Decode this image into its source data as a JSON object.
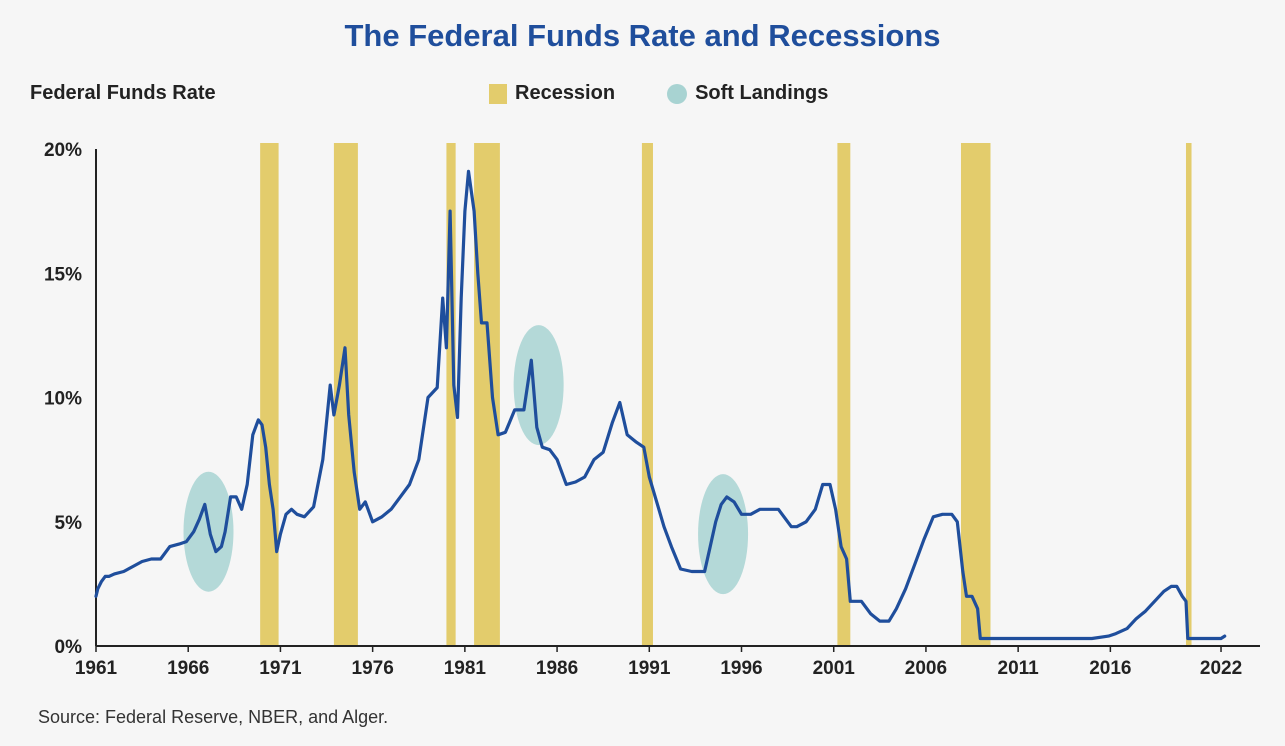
{
  "title": "The Federal Funds Rate and Recessions",
  "y_axis_title": "Federal Funds Rate",
  "legend": {
    "recession": "Recession",
    "soft_landing": "Soft Landings"
  },
  "source": "Source: Federal Reserve, NBER, and Alger.",
  "colors": {
    "line": "#1f4e9c",
    "recession": "#e3cc6c",
    "soft_landing": "#a8d3d2",
    "title": "#1f4e9c"
  },
  "chart_data": {
    "type": "line",
    "title": "The Federal Funds Rate and Recessions",
    "ylabel": "Federal Funds Rate",
    "xlim": [
      1961,
      2023.3
    ],
    "ylim": [
      0,
      20
    ],
    "x_ticks": [
      1961,
      1966,
      1971,
      1976,
      1981,
      1986,
      1991,
      1996,
      2001,
      2006,
      2011,
      2016,
      2022
    ],
    "x_tick_labels": [
      "1961",
      "1966",
      "1971",
      "1976",
      "1981",
      "1986",
      "1991",
      "1996",
      "2001",
      "2006",
      "2011",
      "2016",
      "2022"
    ],
    "y_ticks": [
      0,
      5,
      10,
      15,
      20
    ],
    "y_tick_labels": [
      "0%",
      "5%",
      "10%",
      "15%",
      "20%"
    ],
    "recessions": [
      {
        "start": 1969.9,
        "end": 1970.9
      },
      {
        "start": 1973.9,
        "end": 1975.2
      },
      {
        "start": 1980.0,
        "end": 1980.5
      },
      {
        "start": 1981.5,
        "end": 1982.9
      },
      {
        "start": 1990.6,
        "end": 1991.2
      },
      {
        "start": 2001.2,
        "end": 2001.9
      },
      {
        "start": 2007.9,
        "end": 2009.5
      },
      {
        "start": 2020.1,
        "end": 2020.4
      }
    ],
    "soft_landings": [
      {
        "center_x": 1967.1,
        "center_y": 4.6
      },
      {
        "center_x": 1985.0,
        "center_y": 10.5
      },
      {
        "center_x": 1995.0,
        "center_y": 4.5
      }
    ],
    "series": [
      {
        "name": "Federal Funds Rate",
        "x": [
          1961.0,
          1961.1,
          1961.3,
          1961.5,
          1961.7,
          1962.0,
          1962.5,
          1963.0,
          1963.5,
          1964.0,
          1964.5,
          1965.0,
          1965.5,
          1965.9,
          1966.3,
          1966.6,
          1966.9,
          1967.2,
          1967.5,
          1967.8,
          1968.0,
          1968.3,
          1968.6,
          1968.9,
          1969.2,
          1969.5,
          1969.8,
          1970.0,
          1970.2,
          1970.4,
          1970.6,
          1970.8,
          1971.0,
          1971.3,
          1971.6,
          1971.9,
          1972.3,
          1972.8,
          1973.3,
          1973.7,
          1973.9,
          1974.2,
          1974.5,
          1974.7,
          1975.0,
          1975.3,
          1975.6,
          1976.0,
          1976.5,
          1977.0,
          1977.5,
          1978.0,
          1978.5,
          1979.0,
          1979.5,
          1979.8,
          1980.0,
          1980.2,
          1980.4,
          1980.6,
          1980.8,
          1981.0,
          1981.2,
          1981.5,
          1981.7,
          1981.9,
          1982.2,
          1982.5,
          1982.8,
          1983.2,
          1983.7,
          1984.2,
          1984.6,
          1984.9,
          1985.2,
          1985.6,
          1986.0,
          1986.5,
          1987.0,
          1987.5,
          1988.0,
          1988.5,
          1989.0,
          1989.4,
          1989.8,
          1990.3,
          1990.7,
          1991.0,
          1991.4,
          1991.8,
          1992.2,
          1992.7,
          1993.3,
          1994.0,
          1994.3,
          1994.6,
          1994.9,
          1995.2,
          1995.6,
          1996.0,
          1996.5,
          1997.0,
          1997.5,
          1998.0,
          1998.7,
          1999.0,
          1999.5,
          2000.0,
          2000.4,
          2000.8,
          2001.1,
          2001.4,
          2001.7,
          2001.9,
          2002.5,
          2003.0,
          2003.5,
          2004.0,
          2004.4,
          2004.9,
          2005.4,
          2005.9,
          2006.4,
          2006.9,
          2007.4,
          2007.7,
          2008.0,
          2008.2,
          2008.5,
          2008.8,
          2008.95,
          2009.5,
          2011.0,
          2013.0,
          2015.0,
          2015.9,
          2016.3,
          2016.9,
          2017.4,
          2017.9,
          2018.4,
          2018.9,
          2019.3,
          2019.6,
          2019.9,
          2020.1,
          2020.2,
          2021.0,
          2022.0,
          2022.2
        ],
        "y": [
          2.0,
          2.3,
          2.6,
          2.8,
          2.8,
          2.9,
          3.0,
          3.2,
          3.4,
          3.5,
          3.5,
          4.0,
          4.1,
          4.2,
          4.6,
          5.1,
          5.7,
          4.5,
          3.8,
          4.0,
          4.6,
          6.0,
          6.0,
          5.5,
          6.5,
          8.5,
          9.1,
          8.9,
          8.0,
          6.5,
          5.5,
          3.8,
          4.5,
          5.3,
          5.5,
          5.3,
          5.2,
          5.6,
          7.5,
          10.5,
          9.3,
          10.5,
          12.0,
          9.3,
          7.0,
          5.5,
          5.8,
          5.0,
          5.2,
          5.5,
          6.0,
          6.5,
          7.5,
          10.0,
          10.4,
          14.0,
          12.0,
          17.5,
          10.5,
          9.2,
          14.0,
          17.5,
          19.1,
          17.5,
          15.0,
          13.0,
          13.0,
          10.0,
          8.5,
          8.6,
          9.5,
          9.5,
          11.5,
          8.8,
          8.0,
          7.9,
          7.5,
          6.5,
          6.6,
          6.8,
          7.5,
          7.8,
          9.0,
          9.8,
          8.5,
          8.2,
          8.0,
          6.8,
          5.8,
          4.8,
          4.0,
          3.1,
          3.0,
          3.0,
          4.0,
          5.0,
          5.7,
          6.0,
          5.8,
          5.3,
          5.3,
          5.5,
          5.5,
          5.5,
          4.8,
          4.8,
          5.0,
          5.5,
          6.5,
          6.5,
          5.5,
          4.0,
          3.5,
          1.8,
          1.8,
          1.3,
          1.0,
          1.0,
          1.5,
          2.3,
          3.3,
          4.3,
          5.2,
          5.3,
          5.3,
          5.0,
          3.0,
          2.0,
          2.0,
          1.5,
          0.3,
          0.3,
          0.3,
          0.3,
          0.3,
          0.4,
          0.5,
          0.7,
          1.1,
          1.4,
          1.8,
          2.2,
          2.4,
          2.4,
          2.0,
          1.8,
          0.3,
          0.3,
          0.3,
          0.4
        ]
      }
    ]
  }
}
